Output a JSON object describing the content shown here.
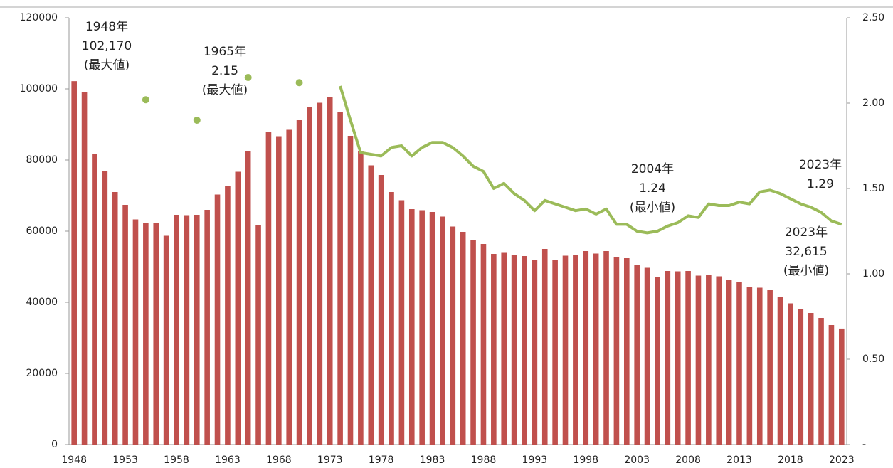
{
  "chart_data": {
    "type": "bar+line",
    "categories": [
      "1948",
      null,
      null,
      null,
      null,
      "1953",
      null,
      null,
      null,
      null,
      "1958",
      null,
      null,
      null,
      null,
      "1963",
      null,
      null,
      null,
      null,
      "1968",
      null,
      null,
      null,
      null,
      "1973",
      null,
      null,
      null,
      null,
      "1978",
      null,
      null,
      null,
      null,
      "1983",
      null,
      null,
      null,
      null,
      "1988",
      null,
      null,
      null,
      null,
      "1993",
      null,
      null,
      null,
      null,
      "1998",
      null,
      null,
      null,
      null,
      "2003",
      null,
      null,
      null,
      null,
      "2008",
      null,
      null,
      null,
      null,
      "2013",
      null,
      null,
      null,
      null,
      "2018",
      null,
      null,
      null,
      null,
      "2023"
    ],
    "series": [
      {
        "type": "bar",
        "color": "#c0504d",
        "values": [
          102170,
          99000,
          81800,
          77000,
          71000,
          67400,
          63300,
          62400,
          62300,
          58700,
          64600,
          64500,
          64600,
          66000,
          70300,
          72700,
          76700,
          82500,
          61700,
          88000,
          86700,
          88500,
          91200,
          95000,
          96100,
          97800,
          93400,
          86800,
          82400,
          78500,
          75800,
          71000,
          68700,
          66200,
          65900,
          65400,
          64100,
          61300,
          59800,
          57600,
          56400,
          53600,
          53900,
          53300,
          53000,
          51900,
          55000,
          51900,
          53100,
          53300,
          54400,
          53700,
          54400,
          52600,
          52400,
          50500,
          49700,
          47200,
          48800,
          48700,
          48800,
          47500,
          47700,
          47300,
          46400,
          45700,
          44300,
          44100,
          43400,
          41600,
          39700,
          38100,
          37000,
          35600,
          33600,
          32615
        ]
      },
      {
        "type": "line",
        "axis": "y2",
        "color": "#9bbb59",
        "values": [
          null,
          null,
          null,
          null,
          null,
          null,
          null,
          2.02,
          null,
          null,
          null,
          null,
          1.9,
          null,
          null,
          null,
          null,
          2.15,
          null,
          null,
          null,
          null,
          2.12,
          null,
          null,
          null,
          2.1,
          1.9,
          1.71,
          1.7,
          1.69,
          1.74,
          1.75,
          1.69,
          1.74,
          1.77,
          1.77,
          1.74,
          1.69,
          1.63,
          1.6,
          1.5,
          1.53,
          1.47,
          1.43,
          1.37,
          1.43,
          1.41,
          1.39,
          1.37,
          1.38,
          1.35,
          1.38,
          1.29,
          1.29,
          1.25,
          1.24,
          1.25,
          1.28,
          1.3,
          1.34,
          1.33,
          1.41,
          1.4,
          1.4,
          1.42,
          1.41,
          1.48,
          1.49,
          1.47,
          1.44,
          1.41,
          1.39,
          1.36,
          1.31,
          1.29
        ]
      }
    ],
    "ylim": [
      0,
      120000
    ],
    "yticks": [
      0,
      20000,
      40000,
      60000,
      80000,
      100000,
      120000
    ],
    "y2lim": [
      0,
      2.5
    ],
    "y2ticks": [
      {
        "value": 0,
        "label": "-"
      },
      {
        "value": 0.5,
        "label": "0.50"
      },
      {
        "value": 1,
        "label": "1.00"
      },
      {
        "value": 1.5,
        "label": "1.50"
      },
      {
        "value": 2,
        "label": "2.00"
      },
      {
        "value": 2.5,
        "label": "2.50"
      }
    ],
    "annotations": [
      {
        "lines": [
          "1948年",
          "102,170",
          "(最大値)"
        ]
      },
      {
        "lines": [
          "1965年",
          "2.15",
          "(最大値)"
        ]
      },
      {
        "lines": [
          "2004年",
          "1.24",
          "(最小値)"
        ]
      },
      {
        "lines": [
          "2023年",
          "1.29"
        ]
      },
      {
        "lines": [
          "2023年",
          "32,615",
          "(最小値)"
        ]
      }
    ]
  }
}
